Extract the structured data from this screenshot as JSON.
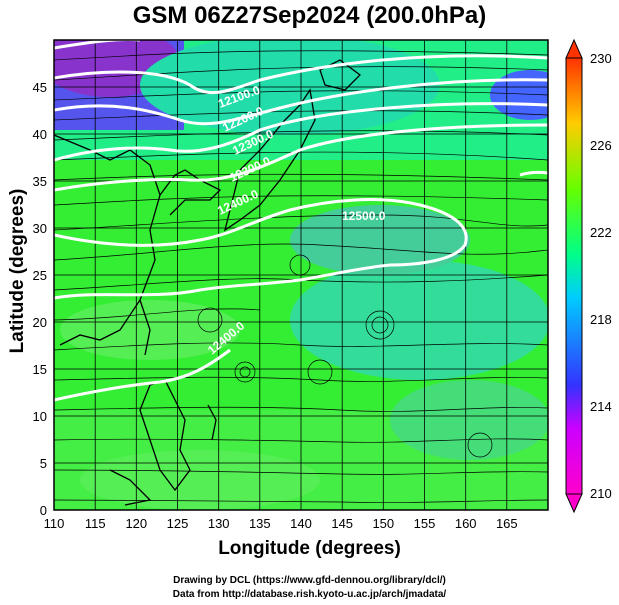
{
  "title": "GSM 06Z27Sep2024 (200.0hPa)",
  "xlabel": "Longitude (degrees)",
  "ylabel": "Latitude (degrees)",
  "credits": {
    "line1": "Drawing by DCL (https://www.gfd-dennou.org/library/dcl/)",
    "line2": "Data from http://database.rish.kyoto-u.ac.jp/arch/jmadata/"
  },
  "map": {
    "lon_range": [
      110,
      170
    ],
    "lat_range": [
      0,
      50
    ],
    "lon_ticks": [
      "110",
      "115",
      "120",
      "125",
      "130",
      "135",
      "140",
      "145",
      "150",
      "155",
      "160",
      "165"
    ],
    "lat_ticks": [
      "0",
      "5",
      "10",
      "15",
      "20",
      "25",
      "30",
      "35",
      "40",
      "45"
    ],
    "fill_variable_range": [
      210,
      230
    ],
    "contour_labels": [
      "12500.0",
      "12400.0",
      "12300.0",
      "12400.0",
      "12300.0",
      "12200.0",
      "12100.0"
    ]
  },
  "colorbar": {
    "ticks": [
      "210",
      "214",
      "218",
      "222",
      "226",
      "230"
    ],
    "colors": [
      "#ff00cc",
      "#3333ff",
      "#00ccff",
      "#00ff66",
      "#66ff00",
      "#ffcc00",
      "#ff3300"
    ]
  },
  "chart_data": {
    "type": "heatmap",
    "title": "GSM 06Z27Sep2024 (200.0hPa)",
    "xlabel": "Longitude (degrees)",
    "ylabel": "Latitude (degrees)",
    "xlim": [
      110,
      170
    ],
    "ylim": [
      0,
      50
    ],
    "colorbar_range": [
      210,
      230
    ],
    "colorbar_ticks": [
      210,
      214,
      218,
      222,
      226,
      230
    ],
    "contour_levels_labeled": [
      12100.0,
      12200.0,
      12300.0,
      12400.0,
      12500.0
    ],
    "grid": true
  }
}
